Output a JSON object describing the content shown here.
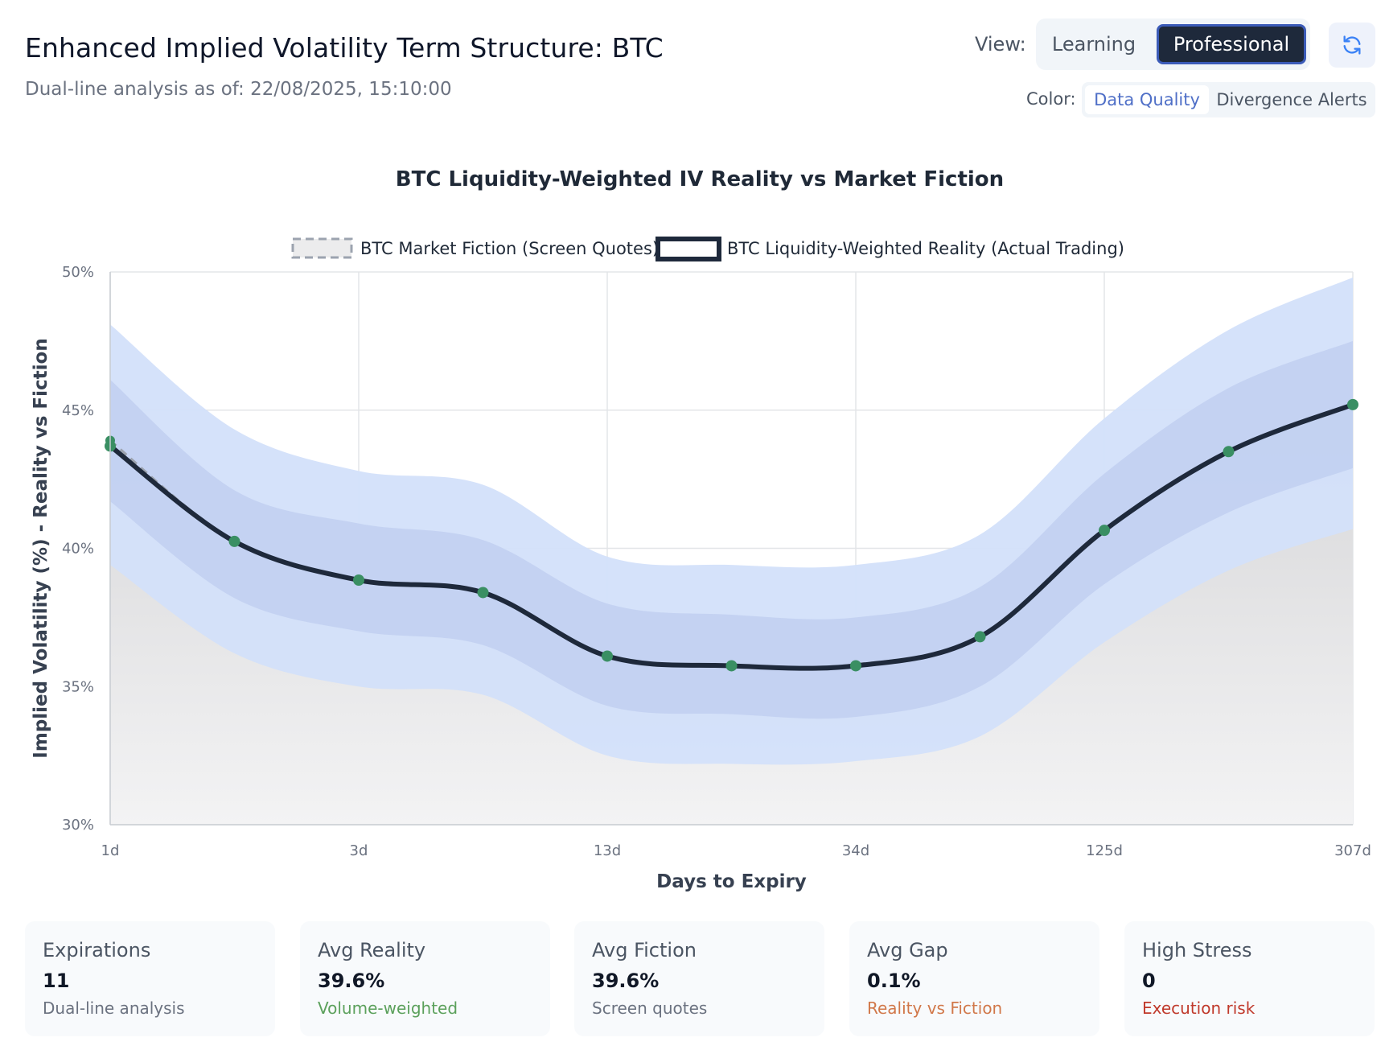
{
  "header": {
    "title": "Enhanced Implied Volatility Term Structure: BTC",
    "subtitle": "Dual-line analysis as of: 22/08/2025, 15:10:00"
  },
  "controls": {
    "view_label": "View:",
    "view_options": [
      "Learning",
      "Professional"
    ],
    "view_selected": "Professional",
    "color_label": "Color:",
    "color_options": [
      "Data Quality",
      "Divergence Alerts"
    ],
    "color_selected": "Data Quality",
    "refresh_icon": "refresh-icon"
  },
  "chart_data": {
    "type": "line",
    "title": "BTC Liquidity-Weighted IV Reality vs Market Fiction",
    "xlabel": "Days to Expiry",
    "ylabel": "Implied Volatility (%) - Reality vs Fiction",
    "ylim": [
      30,
      50
    ],
    "yticks": [
      "30%",
      "35%",
      "40%",
      "45%",
      "50%"
    ],
    "x_tick_labels": [
      "1d",
      "3d",
      "13d",
      "34d",
      "125d",
      "307d"
    ],
    "x_tick_positions": [
      0,
      2,
      4,
      6,
      8,
      10
    ],
    "grid": true,
    "legend_position": "top-center",
    "series": [
      {
        "name": "BTC Market Fiction (Screen Quotes)",
        "style": "dashed",
        "color": "#9ca3af",
        "values": [
          43.9,
          40.25,
          38.85,
          38.4,
          36.1,
          35.75,
          35.8,
          36.8,
          40.65,
          43.5,
          45.2
        ]
      },
      {
        "name": "BTC Liquidity-Weighted Reality (Actual Trading)",
        "style": "solid",
        "color": "#1e293b",
        "values": [
          43.7,
          40.25,
          38.85,
          38.4,
          36.1,
          35.75,
          35.75,
          36.8,
          40.65,
          43.5,
          45.2
        ]
      }
    ],
    "bands": {
      "outer_upper": [
        48.1,
        44.3,
        42.8,
        42.3,
        39.7,
        39.4,
        39.4,
        40.5,
        44.7,
        47.9,
        49.8
      ],
      "outer_lower": [
        39.4,
        36.2,
        35.0,
        34.7,
        32.5,
        32.2,
        32.3,
        33.2,
        36.6,
        39.2,
        40.7
      ],
      "inner_upper": [
        46.1,
        42.1,
        40.9,
        40.3,
        38.0,
        37.6,
        37.5,
        38.6,
        42.7,
        45.8,
        47.5
      ],
      "inner_lower": [
        41.7,
        38.2,
        37.0,
        36.5,
        34.3,
        34.0,
        33.9,
        35.0,
        38.7,
        41.3,
        42.9
      ]
    },
    "point_color": "#3a8f63",
    "band_colors": {
      "outer": "#d3e0fa",
      "inner": "#b9c8ec"
    }
  },
  "stats": [
    {
      "label": "Expirations",
      "value": "11",
      "sub": "Dual-line analysis",
      "tone": "gray"
    },
    {
      "label": "Avg Reality",
      "value": "39.6%",
      "sub": "Volume-weighted",
      "tone": "green"
    },
    {
      "label": "Avg Fiction",
      "value": "39.6%",
      "sub": "Screen quotes",
      "tone": "gray"
    },
    {
      "label": "Avg Gap",
      "value": "0.1%",
      "sub": "Reality vs Fiction",
      "tone": "orange"
    },
    {
      "label": "High Stress",
      "value": "0",
      "sub": "Execution risk",
      "tone": "red"
    }
  ]
}
